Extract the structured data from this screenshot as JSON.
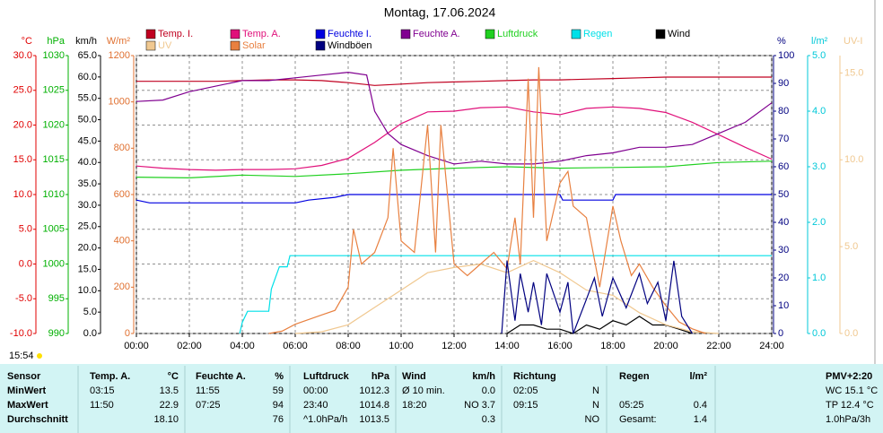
{
  "chart_data": {
    "type": "line",
    "title": "Montag, 17.06.2024",
    "current_time": "15:54",
    "xlim": [
      0,
      24
    ],
    "xticks": [
      {
        "value": 0,
        "label": "00:00"
      },
      {
        "value": 2,
        "label": "02:00"
      },
      {
        "value": 4,
        "label": "04:00"
      },
      {
        "value": 6,
        "label": "06:00"
      },
      {
        "value": 8,
        "label": "08:00"
      },
      {
        "value": 10,
        "label": "10:00"
      },
      {
        "value": 12,
        "label": "12:00"
      },
      {
        "value": 14,
        "label": "14:00"
      },
      {
        "value": 16,
        "label": "16:00"
      },
      {
        "value": 18,
        "label": "18:00"
      },
      {
        "value": 20,
        "label": "20:00"
      },
      {
        "value": 22,
        "label": "22:00"
      },
      {
        "value": 24,
        "label": "24:00"
      }
    ],
    "grid": true,
    "grid_axis": 0,
    "axes": [
      {
        "label": "°C",
        "color": "#e00000",
        "ylim": [
          -10,
          30
        ],
        "yticks": [
          {
            "value": 30,
            "label": "30.0"
          },
          {
            "value": 25,
            "label": "25.0"
          },
          {
            "value": 20,
            "label": "20.0"
          },
          {
            "value": 15,
            "label": "15.0"
          },
          {
            "value": 10,
            "label": "10.0"
          },
          {
            "value": 5,
            "label": "5.0"
          },
          {
            "value": 0,
            "label": "0.0"
          },
          {
            "value": -5,
            "label": "-5.0"
          },
          {
            "value": -10,
            "label": "-10.0"
          }
        ]
      },
      {
        "label": "hPa",
        "color": "#00b000",
        "ylim": [
          990,
          1030
        ],
        "yticks": [
          1030,
          1025,
          1020,
          1015,
          1010,
          1005,
          1000,
          995,
          990
        ]
      },
      {
        "label": "km/h",
        "color": "#000000",
        "ylim": [
          0,
          65
        ],
        "yticks": [
          {
            "value": 65,
            "label": "65.0"
          },
          {
            "value": 60,
            "label": "60.0"
          },
          {
            "value": 55,
            "label": "55.0"
          },
          {
            "value": 50,
            "label": "50.0"
          },
          {
            "value": 45,
            "label": "45.0"
          },
          {
            "value": 40,
            "label": "40.0"
          },
          {
            "value": 35,
            "label": "35.0"
          },
          {
            "value": 30,
            "label": "30.0"
          },
          {
            "value": 25,
            "label": "25.0"
          },
          {
            "value": 20,
            "label": "20.0"
          },
          {
            "value": 15,
            "label": "15.0"
          },
          {
            "value": 10,
            "label": "10.0"
          },
          {
            "value": 5,
            "label": "5.0"
          },
          {
            "value": 0,
            "label": "0.0"
          }
        ]
      },
      {
        "label": "W/m²",
        "color": "#e07030",
        "ylim": [
          0,
          1200
        ],
        "yticks": [
          1200,
          1000,
          800,
          600,
          400,
          200,
          0
        ]
      },
      {
        "label": "%",
        "color": "#000080",
        "ylim": [
          0,
          100
        ],
        "yticks": [
          100,
          90,
          80,
          70,
          60,
          50,
          40,
          30,
          20,
          10,
          0
        ]
      },
      {
        "label": "l/m²",
        "color": "#00c8d8",
        "ylim": [
          0,
          5
        ],
        "yticks": [
          {
            "value": 5,
            "label": "5.0"
          },
          {
            "value": 4,
            "label": "4.0"
          },
          {
            "value": 3,
            "label": "3.0"
          },
          {
            "value": 2,
            "label": "2.0"
          },
          {
            "value": 1,
            "label": "1.0"
          },
          {
            "value": 0,
            "label": "0.0"
          }
        ]
      },
      {
        "label": "UV-I",
        "color": "#f0c890",
        "ylim": [
          0,
          16
        ],
        "yticks": [
          {
            "value": 15,
            "label": "15.0"
          },
          {
            "value": 10,
            "label": "10.0"
          },
          {
            "value": 5,
            "label": "5.0"
          },
          {
            "value": 0,
            "label": "0.0"
          }
        ]
      }
    ],
    "series": [
      {
        "name": "Temp. I.",
        "color": "#c00020",
        "axis": 0,
        "x": [
          0,
          1,
          2,
          3,
          4,
          5,
          6,
          7,
          8,
          9,
          10,
          11,
          12,
          13,
          14,
          15,
          16,
          17,
          18,
          19,
          20,
          21,
          22,
          23,
          24
        ],
        "values": [
          26.3,
          26.3,
          26.3,
          26.3,
          26.4,
          26.5,
          26.5,
          26.4,
          26.1,
          25.7,
          25.9,
          26.1,
          26.2,
          26.3,
          26.4,
          26.5,
          26.5,
          26.6,
          26.7,
          26.8,
          26.9,
          26.9,
          26.9,
          26.9,
          26.9
        ]
      },
      {
        "name": "Temp. A.",
        "color": "#e0107a",
        "axis": 0,
        "x": [
          0,
          1,
          2,
          3,
          4,
          5,
          6,
          7,
          8,
          9,
          10,
          11,
          12,
          13,
          14,
          15,
          16,
          17,
          18,
          19,
          20,
          21,
          22,
          23,
          24
        ],
        "values": [
          14.1,
          13.8,
          13.6,
          13.5,
          13.6,
          13.6,
          13.7,
          14.2,
          15.2,
          17.5,
          20.2,
          21.9,
          22.0,
          22.5,
          22.6,
          21.9,
          21.5,
          22.4,
          22.6,
          22.4,
          21.8,
          20.4,
          18.6,
          16.8,
          15.1
        ]
      },
      {
        "name": "Feuchte I.",
        "color": "#0000e0",
        "axis": 4,
        "x": [
          0,
          0.5,
          6,
          6.5,
          7.5,
          8,
          16,
          16.1,
          18,
          18.1,
          24
        ],
        "values": [
          48,
          47,
          47,
          48,
          49,
          50,
          50,
          48,
          48,
          50,
          50
        ]
      },
      {
        "name": "Feuchte A.",
        "color": "#800090",
        "axis": 4,
        "x": [
          0,
          1,
          2,
          3,
          4,
          5,
          6,
          7,
          8,
          8.7,
          9,
          9.5,
          10,
          11,
          12,
          13,
          14,
          15,
          16,
          17,
          18,
          19,
          20,
          21,
          22,
          23,
          24
        ],
        "values": [
          83.5,
          84,
          87,
          89,
          91,
          91,
          92,
          93,
          94,
          93,
          80,
          72,
          68,
          64,
          61,
          62,
          61,
          61,
          62,
          64,
          65,
          67,
          67,
          68,
          72,
          76,
          83
        ]
      },
      {
        "name": "Luftdruck",
        "color": "#20d020",
        "axis": 1,
        "x": [
          0,
          2,
          4,
          6,
          8,
          10,
          12,
          14,
          16,
          18,
          20,
          22,
          24
        ],
        "values": [
          1012.5,
          1012.4,
          1012.8,
          1012.6,
          1013.0,
          1013.5,
          1013.8,
          1014.0,
          1013.8,
          1013.9,
          1014.0,
          1014.6,
          1014.8
        ]
      },
      {
        "name": "Regen",
        "color": "#00e0e8",
        "axis": 5,
        "x": [
          3.9,
          4.0,
          4.2,
          5.0,
          5.1,
          5.4,
          5.7,
          5.8,
          24
        ],
        "values": [
          0,
          0.2,
          0.4,
          0.4,
          0.8,
          1.2,
          1.2,
          1.4,
          1.4
        ]
      },
      {
        "name": "Wind",
        "color": "#000000",
        "axis": 2,
        "x": [
          14,
          14.5,
          15,
          15.5,
          16,
          16.5,
          17,
          17.5,
          18,
          18.5,
          19,
          19.5,
          20,
          20.5,
          21
        ],
        "values": [
          0,
          2,
          2,
          1,
          1,
          0,
          2,
          1,
          3,
          2,
          4,
          2,
          2,
          1,
          0
        ]
      },
      {
        "name": "UV",
        "color": "#f0c890",
        "axis": 6,
        "x": [
          6,
          7,
          8,
          9,
          10,
          11,
          12,
          13,
          14,
          15,
          16,
          17,
          18,
          19,
          20,
          21,
          22
        ],
        "values": [
          0,
          0.1,
          0.5,
          1.5,
          2.5,
          3.5,
          3.8,
          4.0,
          3.5,
          4.2,
          3.5,
          2.5,
          2.2,
          1.2,
          0.5,
          0.1,
          0
        ]
      },
      {
        "name": "Solar",
        "color": "#e88040",
        "axis": 3,
        "x": [
          5,
          5.5,
          6,
          7,
          7.5,
          8,
          8.2,
          8.5,
          9,
          9.5,
          9.7,
          10,
          10.5,
          11,
          11.3,
          11.5,
          12,
          12.5,
          13,
          13.5,
          14,
          14.3,
          14.5,
          14.8,
          15,
          15.2,
          15.5,
          16,
          16.3,
          16.5,
          17,
          17.5,
          18,
          18.3,
          18.7,
          19,
          19.5,
          20,
          20.5,
          21,
          21.5
        ],
        "values": [
          0,
          10,
          40,
          80,
          100,
          200,
          450,
          300,
          350,
          500,
          800,
          400,
          350,
          900,
          350,
          900,
          300,
          250,
          300,
          350,
          280,
          500,
          300,
          1100,
          500,
          1150,
          400,
          650,
          700,
          550,
          500,
          200,
          550,
          400,
          250,
          300,
          200,
          120,
          50,
          20,
          0
        ]
      },
      {
        "name": "Windböen",
        "color": "#000080",
        "axis": 2,
        "x": [
          13.8,
          14,
          14.3,
          14.5,
          14.8,
          15,
          15.3,
          15.5,
          16,
          16.3,
          16.5,
          17,
          17.3,
          17.6,
          18,
          18.5,
          19,
          19.3,
          19.7,
          20,
          20.3,
          20.6,
          21
        ],
        "values": [
          0,
          17,
          3,
          14,
          5,
          12,
          2,
          14,
          5,
          12,
          0,
          8,
          13,
          4,
          13,
          6,
          14,
          7,
          12,
          3,
          17,
          4,
          0
        ]
      }
    ]
  },
  "table": {
    "header": [
      "Sensor",
      "Temp. A.",
      "°C",
      "Feuchte A.",
      "%",
      "Luftdruck",
      "hPa",
      "Wind",
      "km/h",
      "Richtung",
      null,
      "Regen",
      "l/m²",
      "PMV+2:20"
    ],
    "rows": [
      [
        "MinWert",
        "03:15",
        "13.5",
        "11:55",
        "59",
        "00:00",
        "1012.3",
        "Ø 10 min.",
        "0.0",
        "02:05",
        "N",
        null,
        null,
        "WC 15.1 °C"
      ],
      [
        "MaxWert",
        "11:50",
        "22.9",
        "07:25",
        "94",
        "23:40",
        "1014.8",
        "18:20",
        "NO 3.7",
        "09:15",
        "N",
        "05:25",
        "0.4",
        "TP 12.4 °C"
      ],
      [
        "Durchschnitt",
        null,
        "18.10",
        null,
        "76",
        "^1.0hPa/h",
        "1013.5",
        null,
        "0.3",
        null,
        "NO",
        "Gesamt:",
        "1.4",
        "1.0hPa/3h"
      ]
    ]
  }
}
